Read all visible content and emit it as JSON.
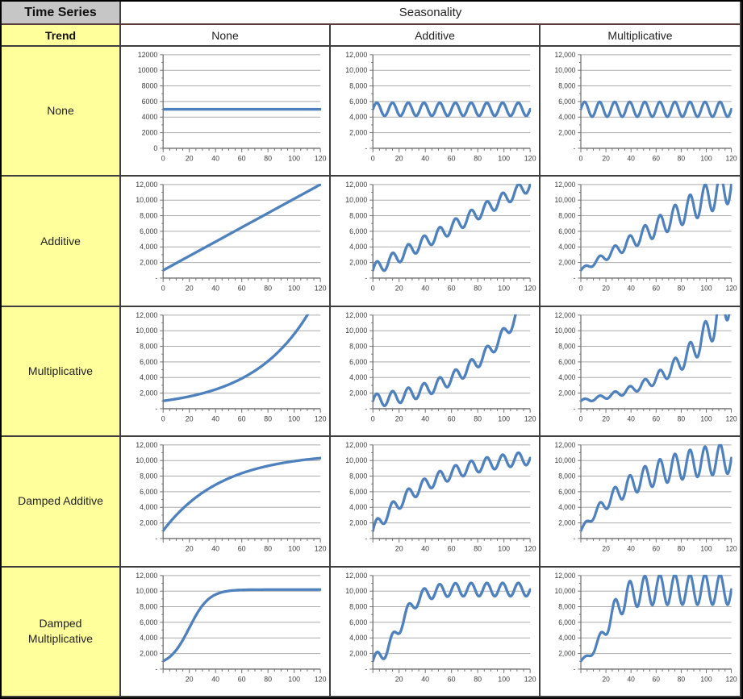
{
  "table": {
    "corner_label": "Time Series",
    "col_group_label": "Seasonality",
    "row_group_label": "Trend",
    "col_headers": [
      "None",
      "Additive",
      "Multiplicative"
    ],
    "row_headers": [
      "None",
      "Additive",
      "Multiplicative",
      "Damped Additive",
      "Damped Multiplicative"
    ]
  },
  "colors": {
    "line": "#4F81BD",
    "grid": "#ababab",
    "axis": "#6e6e6e",
    "tick_text": "#3d3d3d",
    "row_header_bg": "#ffff9c",
    "corner_bg": "#c6c6c6",
    "border": "#3f3f3f"
  },
  "chart_data": {
    "type": "line",
    "x_range": [
      0,
      120
    ],
    "ylim": [
      0,
      12000
    ],
    "y_major_ticks": [
      0,
      2000,
      4000,
      6000,
      8000,
      10000,
      12000
    ],
    "x_major_ticks": [
      0,
      20,
      40,
      60,
      80,
      100,
      120
    ],
    "x_minor_step": 5,
    "y_minor_step": 1000,
    "grid_on": true,
    "legend": "none",
    "ytick_label_styles": {
      "plain": [
        "0",
        "2000",
        "4000",
        "6000",
        "8000",
        "10000",
        "12000"
      ],
      "comma": [
        "-",
        "2,000",
        "4,000",
        "6,000",
        "8,000",
        "10,000",
        "12,000"
      ]
    },
    "generators": {
      "trend": {
        "none": {
          "level": 5000
        },
        "additive": {
          "start": 1000,
          "slope": 91.67
        },
        "multiplicative": {
          "start": 1000,
          "rate": 0.02259
        },
        "damped_additive": {
          "base": 1000,
          "gain": 10000,
          "decay": 0.978
        },
        "damped_multiplicative": {
          "base": 400,
          "amplitude": 9800,
          "midpoint": 20,
          "steepness": 7.5
        }
      },
      "seasonality": {
        "none": {},
        "additive": {
          "amplitude": 850,
          "period": 12
        },
        "multiplicative": {
          "fraction": 0.19,
          "period": 12
        }
      }
    },
    "cells": [
      {
        "row": "None",
        "col": "None",
        "trend": "none",
        "seasonality": "none",
        "ytick_style": "plain",
        "x_labels": [
          "0",
          "20",
          "40",
          "60",
          "80",
          "100",
          "120"
        ]
      },
      {
        "row": "None",
        "col": "Additive",
        "trend": "none",
        "seasonality": "additive",
        "ytick_style": "comma",
        "x_labels": [
          "0",
          "20",
          "40",
          "60",
          "80",
          "100",
          "120"
        ]
      },
      {
        "row": "None",
        "col": "Multiplicative",
        "trend": "none",
        "seasonality": "multiplicative",
        "ytick_style": "comma",
        "x_labels": [
          "0",
          "20",
          "40",
          "60",
          "80",
          "100",
          "120"
        ]
      },
      {
        "row": "Additive",
        "col": "None",
        "trend": "additive",
        "seasonality": "none",
        "ytick_style": "comma",
        "x_labels": [
          "0",
          "20",
          "40",
          "60",
          "80",
          "100",
          "120"
        ]
      },
      {
        "row": "Additive",
        "col": "Additive",
        "trend": "additive",
        "seasonality": "additive",
        "ytick_style": "comma",
        "x_labels": [
          "0",
          "20",
          "40",
          "60",
          "80",
          "100",
          "120"
        ]
      },
      {
        "row": "Additive",
        "col": "Multiplicative",
        "trend": "additive",
        "seasonality": "multiplicative",
        "ytick_style": "comma",
        "x_labels": [
          "0",
          "20",
          "40",
          "60",
          "80",
          "100",
          "120"
        ]
      },
      {
        "row": "Multiplicative",
        "col": "None",
        "trend": "multiplicative",
        "seasonality": "none",
        "ytick_style": "comma",
        "x_labels": [
          "0",
          "20",
          "40",
          "60",
          "80",
          "100",
          "120"
        ]
      },
      {
        "row": "Multiplicative",
        "col": "Additive",
        "trend": "multiplicative",
        "seasonality": "additive",
        "ytick_style": "comma",
        "x_labels": [
          "0",
          "20",
          "40",
          "60",
          "80",
          "100",
          "120"
        ]
      },
      {
        "row": "Multiplicative",
        "col": "Multiplicative",
        "trend": "multiplicative",
        "seasonality": "multiplicative",
        "ytick_style": "comma",
        "x_labels": [
          "0",
          "20",
          "40",
          "60",
          "80",
          "100",
          "120"
        ]
      },
      {
        "row": "Damped Additive",
        "col": "None",
        "trend": "damped_additive",
        "seasonality": "none",
        "ytick_style": "comma",
        "x_labels": [
          "",
          "20",
          "40",
          "60",
          "80",
          "100",
          "120"
        ]
      },
      {
        "row": "Damped Additive",
        "col": "Additive",
        "trend": "damped_additive",
        "seasonality": "additive",
        "ytick_style": "comma",
        "x_labels": [
          "",
          "20",
          "40",
          "60",
          "80",
          "100",
          "120"
        ]
      },
      {
        "row": "Damped Additive",
        "col": "Multiplicative",
        "trend": "damped_additive",
        "seasonality": "multiplicative",
        "ytick_style": "comma",
        "x_labels": [
          "",
          "20",
          "40",
          "60",
          "80",
          "100",
          "120"
        ]
      },
      {
        "row": "Damped Multiplicative",
        "col": "None",
        "trend": "damped_multiplicative",
        "seasonality": "none",
        "ytick_style": "comma",
        "x_labels": [
          "",
          "20",
          "40",
          "60",
          "80",
          "100",
          "120"
        ]
      },
      {
        "row": "Damped Multiplicative",
        "col": "Additive",
        "trend": "damped_multiplicative",
        "seasonality": "additive",
        "ytick_style": "comma",
        "x_labels": [
          "",
          "20",
          "40",
          "60",
          "80",
          "100",
          "120"
        ]
      },
      {
        "row": "Damped Multiplicative",
        "col": "Multiplicative",
        "trend": "damped_multiplicative",
        "seasonality": "multiplicative",
        "ytick_style": "comma",
        "x_labels": [
          "",
          "20",
          "40",
          "60",
          "80",
          "100",
          "120"
        ]
      }
    ]
  }
}
